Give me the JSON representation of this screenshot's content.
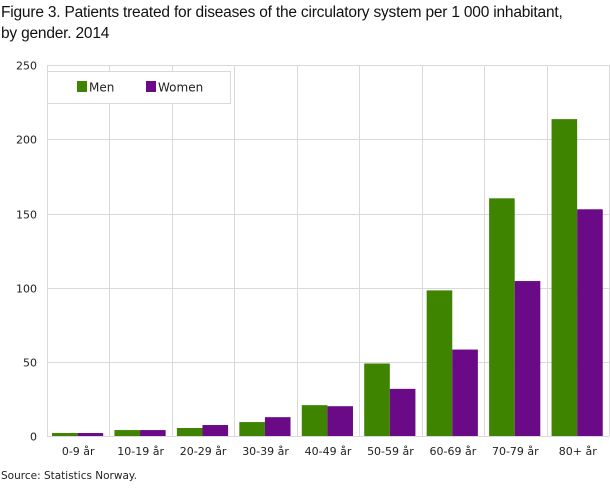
{
  "chart_data": {
    "type": "bar",
    "title": "Figure 3. Patients treated for diseases of the circulatory system per 1 000 inhabitant, by gender. 2014",
    "title_lines": [
      "Figure 3. Patients treated for diseases of the circulatory system per 1 000 inhabitant,",
      "by gender. 2014"
    ],
    "xlabel": "",
    "ylabel": "",
    "categories": [
      "0-9 år",
      "10-19 år",
      "20-29 år",
      "30-39 år",
      "40-49 år",
      "50-59 år",
      "60-69 år",
      "70-79 år",
      "80+ år"
    ],
    "series": [
      {
        "name": "Men",
        "color": "#3f8400",
        "values": [
          2.0,
          4.0,
          5.4,
          9.4,
          20.8,
          48.9,
          98.2,
          160.3,
          213.7
        ]
      },
      {
        "name": "Women",
        "color": "#6a0a87",
        "values": [
          2.0,
          4.0,
          7.4,
          12.7,
          20.1,
          31.8,
          58.3,
          104.5,
          152.9
        ]
      }
    ],
    "ylim": [
      0,
      250
    ],
    "yticks": [
      0,
      50,
      100,
      150,
      200,
      250
    ],
    "grid": {
      "horizontal": true,
      "vertical": true,
      "color": "#d9d9d9"
    },
    "legend": {
      "position": "top-left, inside plot"
    },
    "source": "Source: Statistics Norway."
  }
}
